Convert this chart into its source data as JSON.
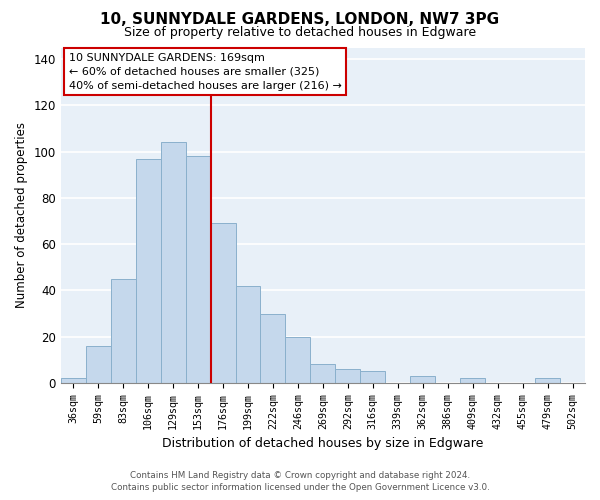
{
  "title": "10, SUNNYDALE GARDENS, LONDON, NW7 3PG",
  "subtitle": "Size of property relative to detached houses in Edgware",
  "xlabel": "Distribution of detached houses by size in Edgware",
  "ylabel": "Number of detached properties",
  "bar_labels": [
    "36sqm",
    "59sqm",
    "83sqm",
    "106sqm",
    "129sqm",
    "153sqm",
    "176sqm",
    "199sqm",
    "222sqm",
    "246sqm",
    "269sqm",
    "292sqm",
    "316sqm",
    "339sqm",
    "362sqm",
    "386sqm",
    "409sqm",
    "432sqm",
    "455sqm",
    "479sqm",
    "502sqm"
  ],
  "bar_values": [
    2,
    16,
    45,
    97,
    104,
    98,
    69,
    42,
    30,
    20,
    8,
    6,
    5,
    0,
    3,
    0,
    2,
    0,
    0,
    2,
    0
  ],
  "bar_color": "#c5d8ec",
  "bar_edge_color": "#8ab0cc",
  "vline_x": 5.5,
  "vline_color": "#cc0000",
  "ylim": [
    0,
    145
  ],
  "yticks": [
    0,
    20,
    40,
    60,
    80,
    100,
    120,
    140
  ],
  "annotation_title": "10 SUNNYDALE GARDENS: 169sqm",
  "annotation_line1": "← 60% of detached houses are smaller (325)",
  "annotation_line2": "40% of semi-detached houses are larger (216) →",
  "annotation_box_color": "#ffffff",
  "annotation_box_edge": "#cc0000",
  "footer_line1": "Contains HM Land Registry data © Crown copyright and database right 2024.",
  "footer_line2": "Contains public sector information licensed under the Open Government Licence v3.0.",
  "background_color": "#ffffff",
  "plot_bg_color": "#e8f0f8",
  "grid_color": "#ffffff"
}
